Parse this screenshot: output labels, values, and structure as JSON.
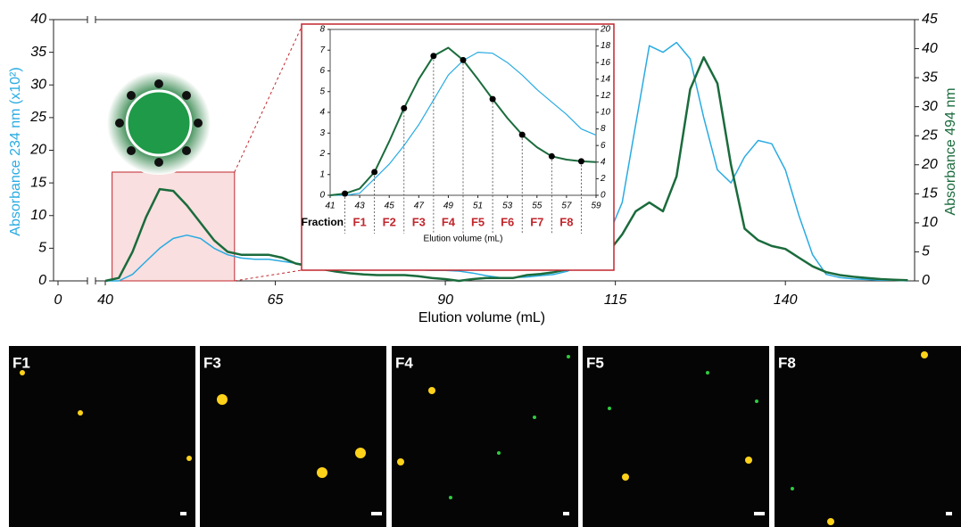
{
  "chart_data": [
    {
      "type": "line",
      "xlabel": "Elution volume (mL)",
      "ylabel": "Absorbance 234 nm  (x10²)",
      "y2label": "Absorbance 494 nm",
      "xlim": [
        0,
        159
      ],
      "x_break": [
        0,
        40
      ],
      "xticks": [
        0,
        40,
        65,
        90,
        115,
        140
      ],
      "ylim": [
        0,
        40
      ],
      "yticks": [
        0,
        5,
        10,
        15,
        20,
        25,
        30,
        35,
        40
      ],
      "y2lim": [
        0,
        45
      ],
      "y2ticks": [
        0,
        5,
        10,
        15,
        20,
        25,
        30,
        35,
        40,
        45
      ],
      "x": [
        40,
        42,
        44,
        46,
        48,
        50,
        52,
        54,
        56,
        58,
        60,
        62,
        64,
        66,
        68,
        70,
        72,
        74,
        76,
        78,
        80,
        82,
        84,
        86,
        88,
        90,
        92,
        94,
        96,
        98,
        100,
        102,
        104,
        106,
        108,
        110,
        112,
        114,
        116,
        118,
        120,
        122,
        124,
        126,
        128,
        130,
        132,
        134,
        136,
        138,
        140,
        142,
        144,
        146,
        148,
        150,
        152,
        154,
        156,
        158
      ],
      "series": [
        {
          "color": "#29abe2",
          "values": [
            0,
            0,
            1,
            3,
            5,
            6.5,
            7,
            6.5,
            5,
            4,
            3.5,
            3.3,
            3.3,
            3,
            2.7,
            2.5,
            2.3,
            2.2,
            2.1,
            2,
            2,
            1.9,
            1.8,
            1.7,
            1.6,
            1.6,
            1.5,
            1.2,
            0.8,
            0.5,
            0.5,
            0.6,
            0.8,
            1,
            1.5,
            2.5,
            4,
            7,
            12,
            24,
            36,
            35,
            36.5,
            34,
            25,
            17,
            15,
            19,
            21.5,
            21,
            17,
            10,
            4,
            1,
            0.5,
            0.3,
            0.2,
            0.1,
            0.1,
            0
          ]
        },
        {
          "color": "#1a6b3c",
          "axis": "y2",
          "values": [
            0,
            0.5,
            5,
            11,
            15.8,
            15.5,
            13,
            10,
            7,
            5,
            4.5,
            4.5,
            4.5,
            4,
            3,
            2.5,
            2,
            1.6,
            1.3,
            1.1,
            1,
            1,
            1,
            0.8,
            0.5,
            0.3,
            0,
            0.3,
            0.5,
            0.5,
            0.5,
            1,
            1.2,
            1.5,
            2,
            4,
            3.5,
            5,
            8,
            12,
            13.5,
            12,
            18,
            33,
            38.5,
            34,
            20,
            9,
            7,
            6,
            5.5,
            4,
            2.5,
            1.5,
            1,
            0.7,
            0.5,
            0.3,
            0.2,
            0.1
          ]
        }
      ]
    },
    {
      "type": "line",
      "xlabel": "Elution volume (mL)",
      "xlim": [
        41,
        59
      ],
      "xticks": [
        41,
        43,
        45,
        47,
        49,
        51,
        53,
        55,
        57,
        59
      ],
      "ylim": [
        0,
        8
      ],
      "yticks": [
        0,
        1,
        2,
        3,
        4,
        5,
        6,
        7,
        8
      ],
      "y2lim": [
        0,
        20
      ],
      "y2ticks": [
        0,
        2,
        4,
        6,
        8,
        10,
        12,
        14,
        16,
        18,
        20
      ],
      "fraction_label": "Fraction",
      "fractions": [
        "F1",
        "F2",
        "F3",
        "F4",
        "F5",
        "F6",
        "F7",
        "F8"
      ],
      "frame_color": "#c1272d",
      "series": [
        {
          "color": "#29abe2",
          "x": [
            41,
            42,
            43,
            44,
            45,
            46,
            47,
            48,
            49,
            50,
            51,
            52,
            53,
            54,
            55,
            56,
            57,
            58,
            59
          ],
          "values": [
            0,
            0,
            0.1,
            0.8,
            1.5,
            2.4,
            3.4,
            4.6,
            5.8,
            6.5,
            6.9,
            6.85,
            6.4,
            5.8,
            5.1,
            4.5,
            3.9,
            3.2,
            2.9
          ]
        },
        {
          "color": "#1a6b3c",
          "axis": "y2",
          "x": [
            41,
            42,
            43,
            44,
            45,
            46,
            47,
            48,
            49,
            50,
            51,
            52,
            53,
            54,
            55,
            56,
            57,
            58,
            59
          ],
          "values": [
            0,
            0.2,
            0.8,
            2.8,
            6.5,
            10.5,
            14,
            16.8,
            17.8,
            16.3,
            14,
            11.6,
            9.3,
            7.3,
            5.8,
            4.7,
            4.3,
            4.1,
            4.0
          ]
        },
        {
          "color": "#000000",
          "axis": "y2",
          "marker": "dot",
          "x": [
            42,
            44,
            46,
            48,
            50,
            52,
            54,
            56,
            58
          ],
          "values": [
            0.2,
            2.8,
            10.5,
            16.8,
            16.3,
            11.6,
            7.3,
            4.7,
            4.1
          ]
        }
      ]
    }
  ],
  "micrographs": [
    "F1",
    "F3",
    "F4",
    "F5",
    "F8"
  ]
}
